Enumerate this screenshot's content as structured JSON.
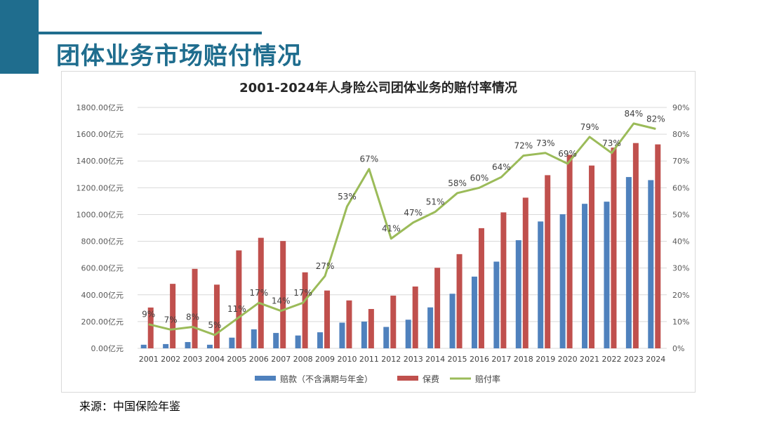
{
  "page": {
    "title": "团体业务市场赔付情况",
    "source": "来源：中国保险年鉴"
  },
  "colors": {
    "accent": "#1f6d8e",
    "claims": "#4f81bd",
    "premium": "#c0504d",
    "ratio": "#9bbb59"
  },
  "chart_data": {
    "type": "bar",
    "title": "2001-2024年人身险公司团体业务的赔付率情况",
    "categories": [
      "2001",
      "2002",
      "2003",
      "2004",
      "2005",
      "2006",
      "2007",
      "2008",
      "2009",
      "2010",
      "2011",
      "2012",
      "2013",
      "2014",
      "2015",
      "2016",
      "2017",
      "2018",
      "2019",
      "2020",
      "2021",
      "2022",
      "2023",
      "2024"
    ],
    "series": [
      {
        "name": "赔款（不含满期与年金）",
        "type": "bar",
        "axis": "left",
        "values": [
          27,
          32,
          47,
          27,
          80,
          142,
          115,
          96,
          120,
          192,
          200,
          160,
          214,
          306,
          408,
          536,
          648,
          808,
          948,
          1002,
          1080,
          1096,
          1280,
          1257
        ]
      },
      {
        "name": "保费",
        "type": "bar",
        "axis": "left",
        "values": [
          305,
          482,
          594,
          476,
          732,
          826,
          802,
          568,
          432,
          358,
          294,
          394,
          462,
          602,
          704,
          898,
          1016,
          1126,
          1294,
          1446,
          1366,
          1500,
          1534,
          1524
        ]
      },
      {
        "name": "赔付率",
        "type": "line",
        "axis": "right",
        "values": [
          9,
          7,
          8,
          5,
          11,
          17,
          14,
          17,
          27,
          53,
          67,
          41,
          47,
          51,
          58,
          60,
          64,
          72,
          73,
          69,
          79,
          73,
          84,
          82
        ],
        "labels": [
          "9%",
          "7%",
          "8%",
          "5%",
          "11%",
          "17%",
          "14%",
          "17%",
          "27%",
          "53%",
          "67%",
          "41%",
          "47%",
          "51%",
          "58%",
          "60%",
          "64%",
          "72%",
          "73%",
          "69%",
          "79%",
          "73%",
          "84%",
          "82%"
        ]
      }
    ],
    "y_left": {
      "min": 0,
      "max": 1800,
      "ticks": [
        "0.00亿元",
        "200.00亿元",
        "400.00亿元",
        "600.00亿元",
        "800.00亿元",
        "1000.00亿元",
        "1200.00亿元",
        "1400.00亿元",
        "1600.00亿元",
        "1800.00亿元"
      ]
    },
    "y_right": {
      "min": 0,
      "max": 90,
      "ticks": [
        "0%",
        "10%",
        "20%",
        "30%",
        "40%",
        "50%",
        "60%",
        "70%",
        "80%",
        "90%"
      ]
    },
    "grid": true,
    "legend_position": "bottom"
  }
}
